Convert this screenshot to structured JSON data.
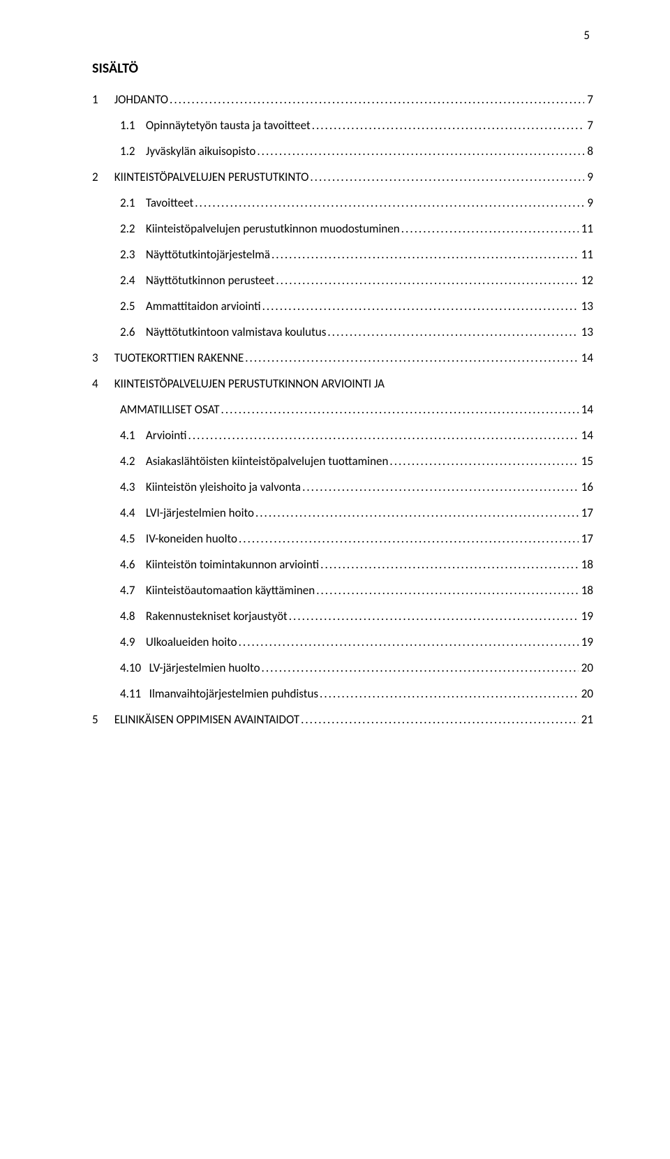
{
  "page_number_top": "5",
  "toc_title": "SISÄLTÖ",
  "leader_char": ".",
  "fonts": {
    "body_size_pt": 12,
    "title_size_pt": 14
  },
  "colors": {
    "text": "#000000",
    "background": "#ffffff"
  },
  "entries": [
    {
      "level": 0,
      "num": "1",
      "label": "JOHDANTO",
      "page": "7"
    },
    {
      "level": 1,
      "num": "1.1",
      "label": "Opinnäytetyön tausta ja tavoitteet",
      "page": "7"
    },
    {
      "level": 1,
      "num": "1.2",
      "label": "Jyväskylän aikuisopisto",
      "page": "8"
    },
    {
      "level": 0,
      "num": "2",
      "label": "KIINTEISTÖPALVELUJEN PERUSTUTKINTO",
      "page": "9"
    },
    {
      "level": 1,
      "num": "2.1",
      "label": "Tavoitteet",
      "page": "9"
    },
    {
      "level": 1,
      "num": "2.2",
      "label": "Kiinteistöpalvelujen perustutkinnon muodostuminen",
      "page": "11"
    },
    {
      "level": 1,
      "num": "2.3",
      "label": "Näyttötutkintojärjestelmä",
      "page": "11"
    },
    {
      "level": 1,
      "num": "2.4",
      "label": "Näyttötutkinnon perusteet",
      "page": "12"
    },
    {
      "level": 1,
      "num": "2.5",
      "label": "Ammattitaidon arviointi",
      "page": "13"
    },
    {
      "level": 1,
      "num": "2.6",
      "label": "Näyttötutkintoon valmistava koulutus",
      "page": "13"
    },
    {
      "level": 0,
      "num": "3",
      "label": "TUOTEKORTTIEN RAKENNE",
      "page": "14"
    },
    {
      "level": 0,
      "num": "4",
      "label_line1": "KIINTEISTÖPALVELUJEN PERUSTUTKINNON ARVIOINTI JA",
      "label_line2": "AMMATILLISET OSAT",
      "page": "14",
      "two_line": true
    },
    {
      "level": 1,
      "num": "4.1",
      "label": "Arviointi",
      "page": "14"
    },
    {
      "level": 1,
      "num": "4.2",
      "label": "Asiakaslähtöisten kiinteistöpalvelujen tuottaminen",
      "page": "15"
    },
    {
      "level": 1,
      "num": "4.3",
      "label": "Kiinteistön yleishoito ja valvonta",
      "page": "16"
    },
    {
      "level": 1,
      "num": "4.4",
      "label": "LVI-järjestelmien hoito",
      "page": "17"
    },
    {
      "level": 1,
      "num": "4.5",
      "label": "IV-koneiden huolto",
      "page": "17"
    },
    {
      "level": 1,
      "num": "4.6",
      "label": "Kiinteistön toimintakunnon arviointi",
      "page": "18"
    },
    {
      "level": 1,
      "num": "4.7",
      "label": "Kiinteistöautomaation käyttäminen",
      "page": "18"
    },
    {
      "level": 1,
      "num": "4.8",
      "label": "Rakennustekniset korjaustyöt",
      "page": "19"
    },
    {
      "level": 1,
      "num": "4.9",
      "label": "Ulkoalueiden hoito",
      "page": "19"
    },
    {
      "level": 1,
      "num": "4.10",
      "label": "LV-järjestelmien huolto",
      "page": "20"
    },
    {
      "level": 1,
      "num": "4.11",
      "label": "Ilmanvaihtojärjestelmien puhdistus",
      "page": "20"
    },
    {
      "level": 0,
      "num": "5",
      "label": "ELINIKÄISEN OPPIMISEN AVAINTAIDOT",
      "page": "21"
    }
  ]
}
